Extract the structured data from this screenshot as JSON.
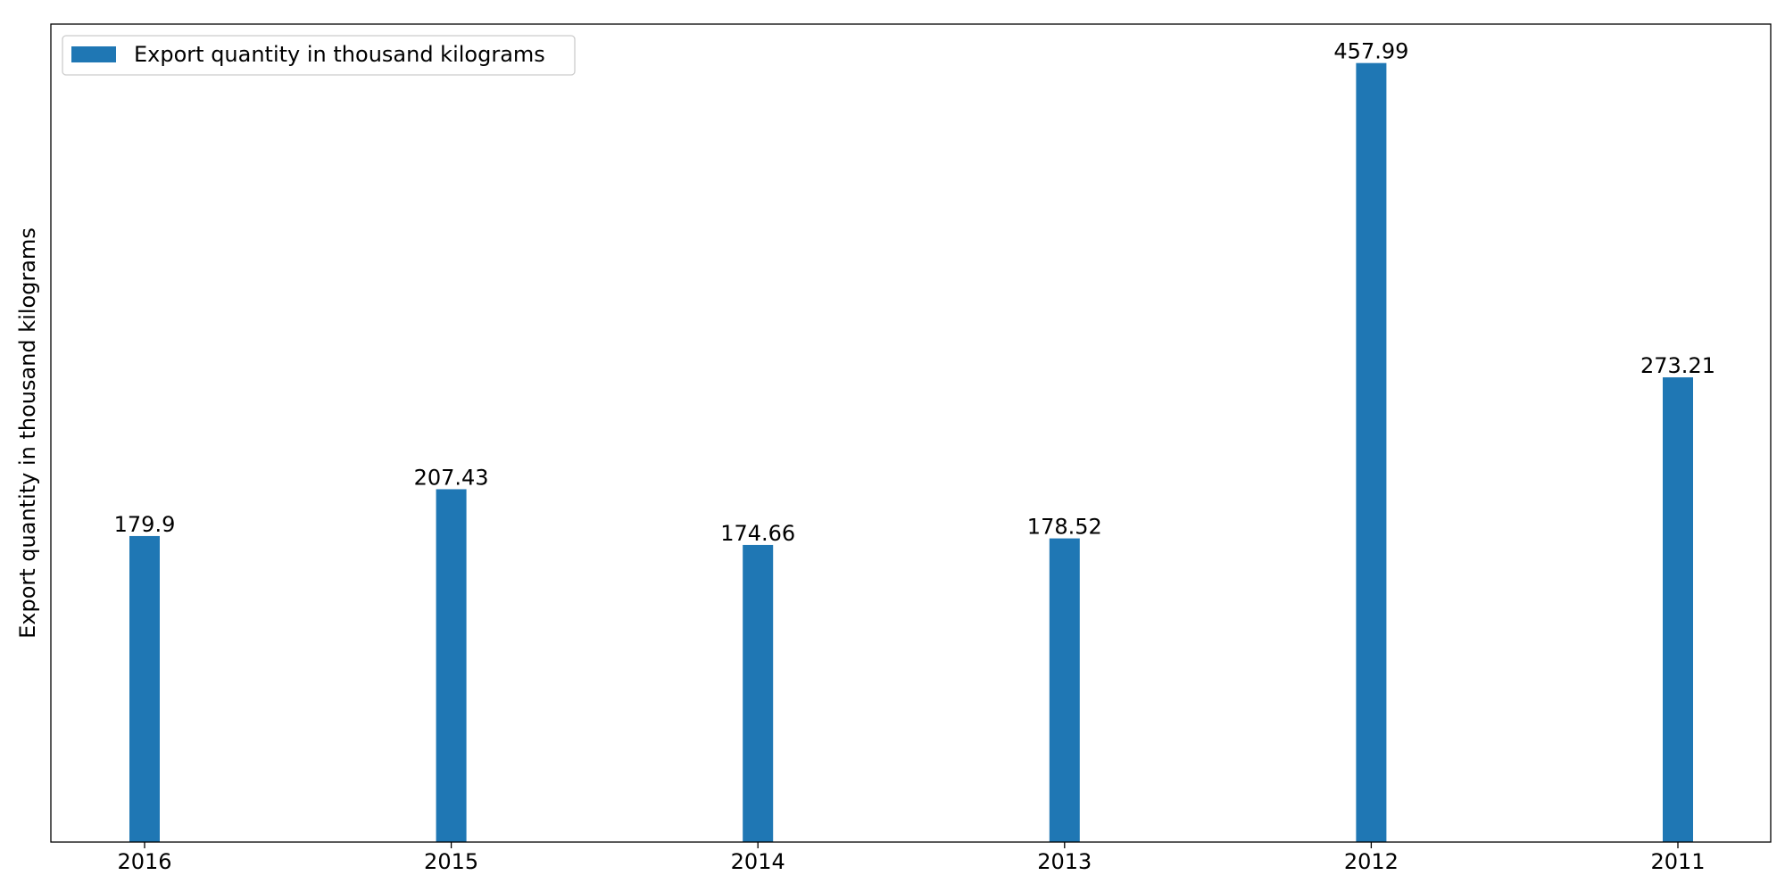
{
  "chart_data": {
    "type": "bar",
    "title": "",
    "xlabel": "",
    "ylabel": "Export quantity in thousand kilograms",
    "categories": [
      "2016",
      "2015",
      "2014",
      "2013",
      "2012",
      "2011"
    ],
    "series": [
      {
        "name": "Export quantity in thousand kilograms",
        "values": [
          179.9,
          207.43,
          174.66,
          178.52,
          457.99,
          273.21
        ],
        "data_labels": [
          "179.9",
          "207.43",
          "174.66",
          "178.52",
          "457.99",
          "273.21"
        ],
        "color": "#1f77b4"
      }
    ],
    "ylim": [
      0,
      480.89
    ],
    "yticks_visible": false,
    "grid": false,
    "legend": {
      "position": "top-left",
      "entries": [
        "Export quantity in thousand kilograms"
      ]
    }
  },
  "colors": {
    "bar": "#1f77b4",
    "axis": "#000000",
    "legend_border": "#cccccc"
  }
}
